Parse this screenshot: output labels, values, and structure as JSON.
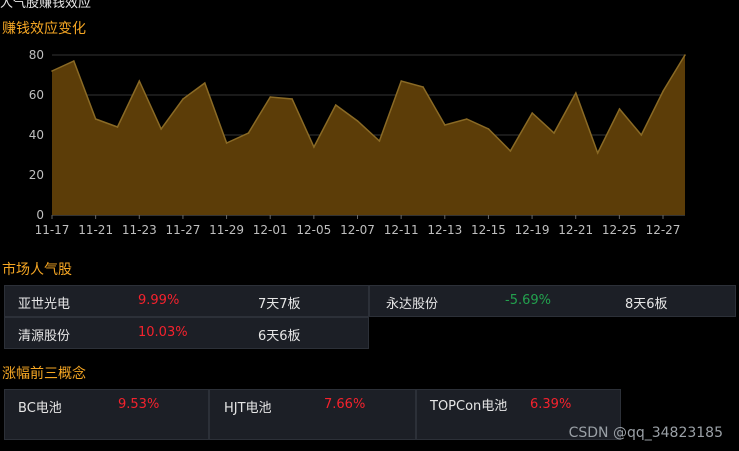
{
  "top_partial_text": "人气股赚钱效应",
  "sections": {
    "money_effect": "赚钱效应变化",
    "popular": "市场人气股",
    "concepts": "涨幅前三概念"
  },
  "popular_stocks": [
    {
      "name": "亚世光电",
      "change": "9.99%",
      "streak": "7天7板",
      "dir": "up"
    },
    {
      "name": "永达股份",
      "change": "-5.69%",
      "streak": "8天6板",
      "dir": "down"
    },
    {
      "name": "清源股份",
      "change": "10.03%",
      "streak": "6天6板",
      "dir": "up"
    }
  ],
  "concepts": [
    {
      "name": "BC电池",
      "change": "9.53%"
    },
    {
      "name": "HJT电池",
      "change": "7.66%"
    },
    {
      "name": "TOPCon电池",
      "change": "6.39%"
    }
  ],
  "watermark": "CSDN @qq_34823185",
  "colors": {
    "accent": "#f5a623",
    "area_fill": "#5c3d08",
    "area_line": "#8a6a25",
    "up": "#f5222d",
    "down": "#23a14e"
  },
  "chart_data": {
    "type": "area",
    "title": "赚钱效应变化",
    "ylim": [
      0,
      80
    ],
    "yticks": [
      0,
      20,
      40,
      60,
      80
    ],
    "x_tick_labels": [
      "11-17",
      "11-21",
      "11-23",
      "11-27",
      "11-29",
      "12-01",
      "12-05",
      "12-07",
      "12-11",
      "12-13",
      "12-15",
      "12-19",
      "12-21",
      "12-25",
      "12-27"
    ],
    "values": [
      72,
      77,
      48,
      44,
      67,
      43,
      58,
      66,
      36,
      41,
      59,
      58,
      34,
      55,
      47,
      37,
      67,
      64,
      45,
      48,
      43,
      32,
      51,
      41,
      61,
      31,
      53,
      40,
      62,
      80
    ],
    "grid": true
  }
}
